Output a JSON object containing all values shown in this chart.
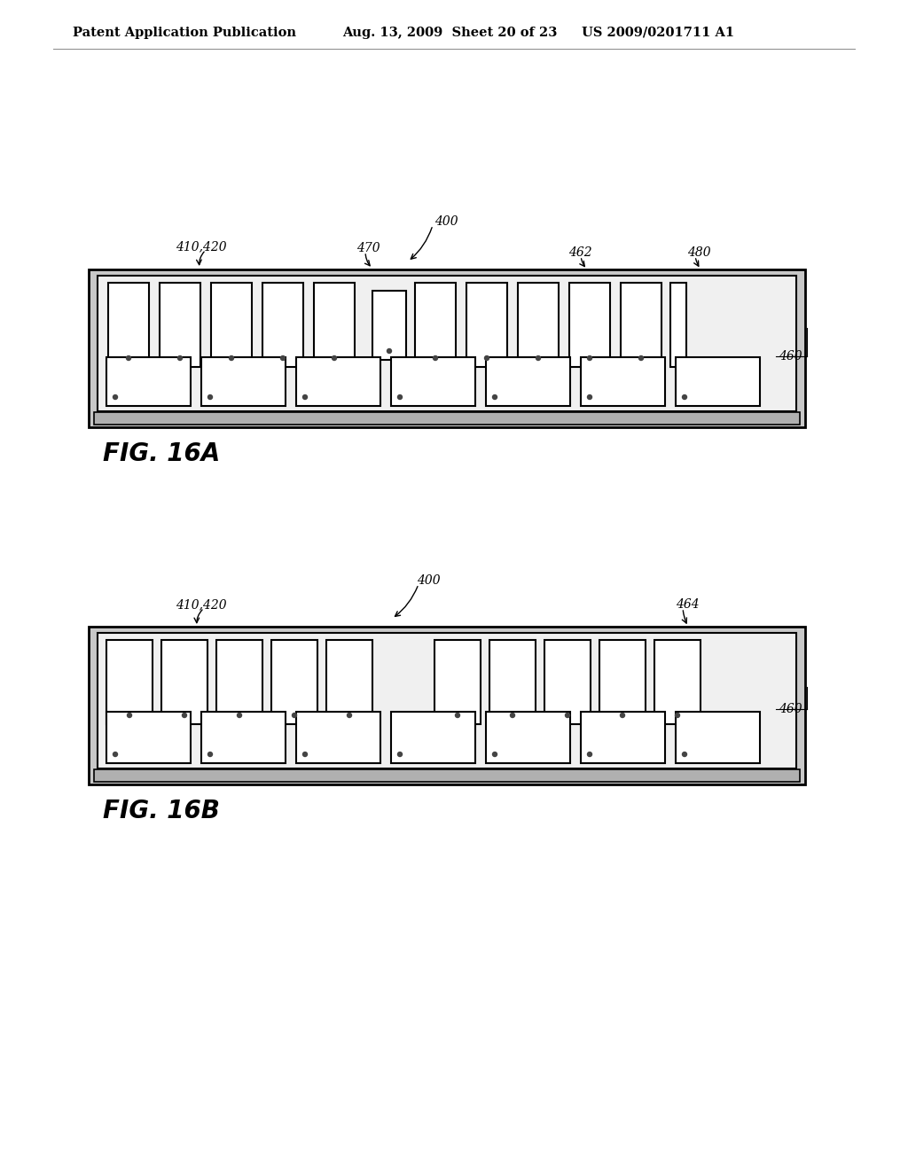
{
  "bg_color": "#ffffff",
  "header_left": "Patent Application Publication",
  "header_mid": "Aug. 13, 2009  Sheet 20 of 23",
  "header_right": "US 2009/0201711 A1",
  "fig16a_label": "FIG. 16A",
  "fig16b_label": "FIG. 16B",
  "board_outer_fill": "#c8c8c8",
  "board_inner_fill": "#f0f0f0",
  "connector_fill": "#b0b0b0",
  "chip_fill": "#ffffff",
  "line_color": "#000000",
  "note_color": "#333333"
}
